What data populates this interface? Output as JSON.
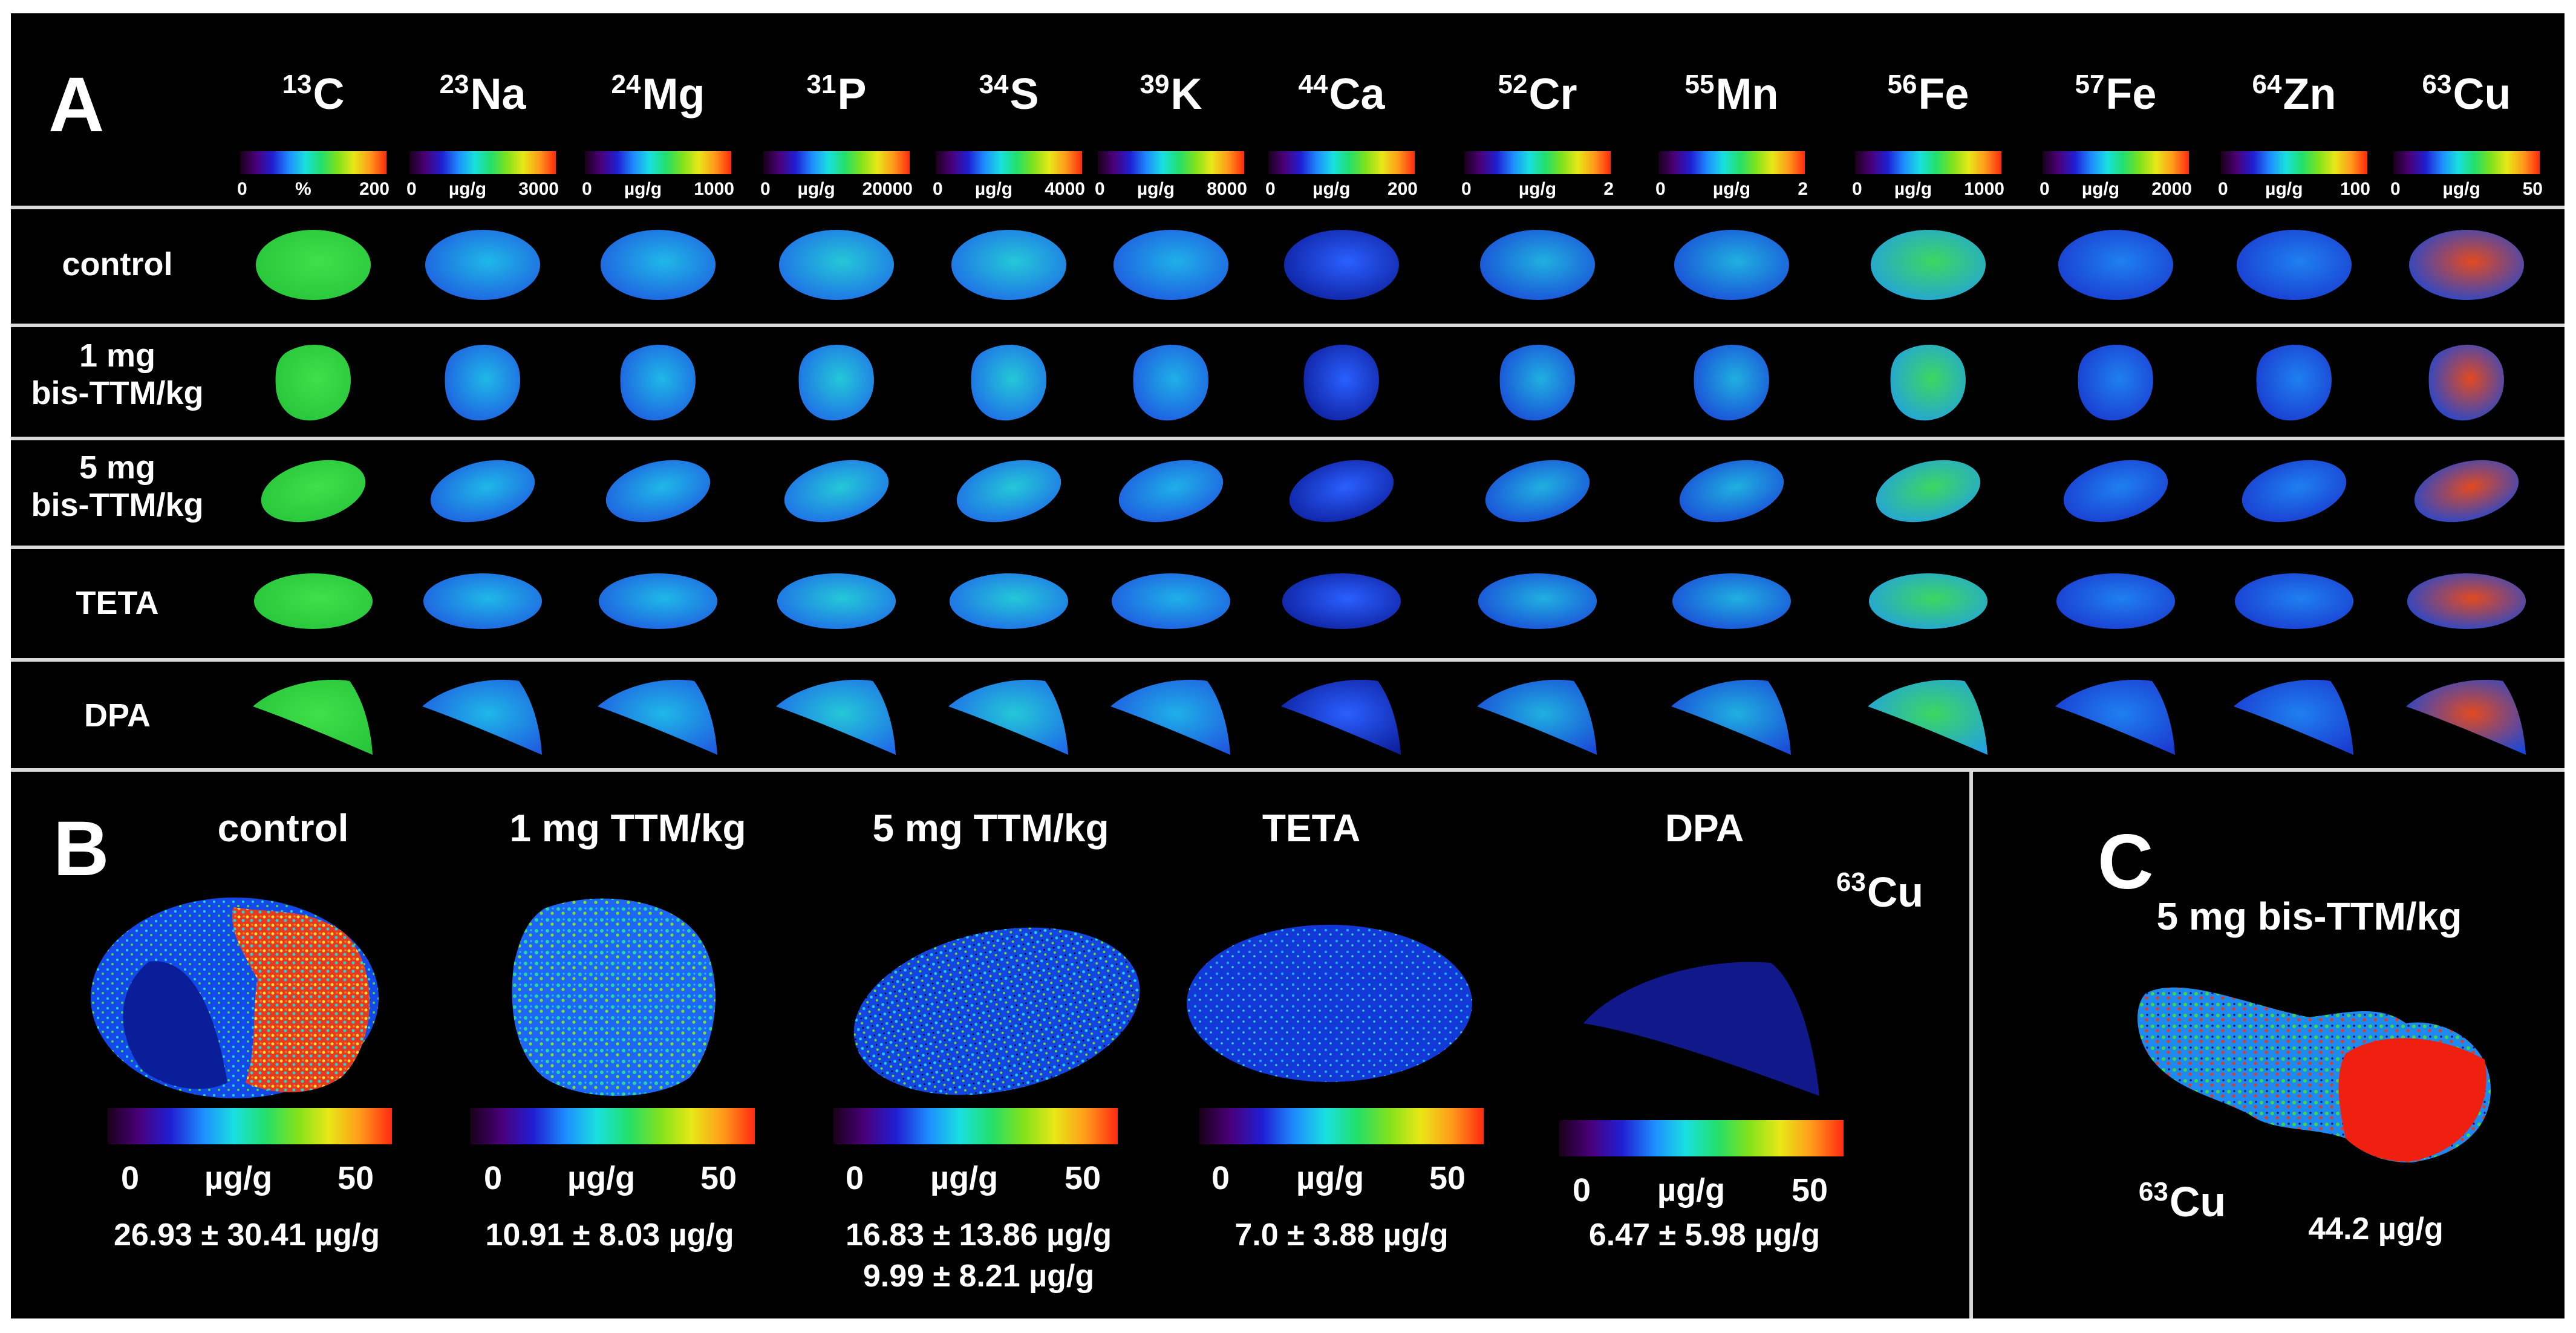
{
  "panel_a": {
    "letter": "A",
    "isotopes": [
      {
        "mass": "13",
        "symbol": "C"
      },
      {
        "mass": "23",
        "symbol": "Na"
      },
      {
        "mass": "24",
        "symbol": "Mg"
      },
      {
        "mass": "31",
        "symbol": "P"
      },
      {
        "mass": "34",
        "symbol": "S"
      },
      {
        "mass": "39",
        "symbol": "K"
      },
      {
        "mass": "44",
        "symbol": "Ca"
      },
      {
        "mass": "52",
        "symbol": "Cr"
      },
      {
        "mass": "55",
        "symbol": "Mn"
      },
      {
        "mass": "56",
        "symbol": "Fe"
      },
      {
        "mass": "57",
        "symbol": "Fe"
      },
      {
        "mass": "64",
        "symbol": "Zn"
      },
      {
        "mass": "63",
        "symbol": "Cu"
      }
    ],
    "scales": [
      {
        "min": "0",
        "unit": "%",
        "max": "200"
      },
      {
        "min": "0",
        "unit": "µg/g",
        "max": "3000"
      },
      {
        "min": "0",
        "unit": "µg/g",
        "max": "1000"
      },
      {
        "min": "0",
        "unit": "µg/g",
        "max": "20000"
      },
      {
        "min": "0",
        "unit": "µg/g",
        "max": "4000"
      },
      {
        "min": "0",
        "unit": "µg/g",
        "max": "8000"
      },
      {
        "min": "0",
        "unit": "µg/g",
        "max": "200"
      },
      {
        "min": "0",
        "unit": "µg/g",
        "max": "2"
      },
      {
        "min": "0",
        "unit": "µg/g",
        "max": "2"
      },
      {
        "min": "0",
        "unit": "µg/g",
        "max": "1000"
      },
      {
        "min": "0",
        "unit": "µg/g",
        "max": "2000"
      },
      {
        "min": "0",
        "unit": "µg/g",
        "max": "100"
      },
      {
        "min": "0",
        "unit": "µg/g",
        "max": "50"
      }
    ],
    "rows": [
      {
        "line1": "control",
        "line2": ""
      },
      {
        "line1": "1 mg",
        "line2": "bis-TTM/kg"
      },
      {
        "line1": "5 mg",
        "line2": "bis-TTM/kg"
      },
      {
        "line1": "TETA",
        "line2": ""
      },
      {
        "line1": "DPA",
        "line2": ""
      }
    ]
  },
  "panel_b": {
    "letter": "B",
    "isotope": {
      "mass": "63",
      "symbol": "Cu"
    },
    "groups": [
      {
        "title": "control",
        "scale_min": "0",
        "scale_unit": "µg/g",
        "scale_max": "50",
        "stats": [
          "26.93 ± 30.41 µg/g"
        ]
      },
      {
        "title": "1 mg  TTM/kg",
        "scale_min": "0",
        "scale_unit": "µg/g",
        "scale_max": "50",
        "stats": [
          "10.91 ± 8.03 µg/g"
        ]
      },
      {
        "title": "5 mg  TTM/kg",
        "scale_min": "0",
        "scale_unit": "µg/g",
        "scale_max": "50",
        "stats": [
          "16.83 ± 13.86 µg/g",
          "9.99 ± 8.21 µg/g"
        ]
      },
      {
        "title": "TETA",
        "scale_min": "0",
        "scale_unit": "µg/g",
        "scale_max": "50",
        "stats": [
          "7.0 ± 3.88 µg/g"
        ]
      },
      {
        "title": "DPA",
        "scale_min": "0",
        "scale_unit": "µg/g",
        "scale_max": "50",
        "stats": [
          "6.47 ± 5.98 µg/g"
        ]
      }
    ]
  },
  "panel_c": {
    "letter": "C",
    "title": "5 mg  bis-TTM/kg",
    "isotope": {
      "mass": "63",
      "symbol": "Cu"
    },
    "value": "44.2 µg/g"
  },
  "colors": {
    "background": "#000000",
    "divider": "#d9d9d9",
    "text": "#ffffff"
  }
}
